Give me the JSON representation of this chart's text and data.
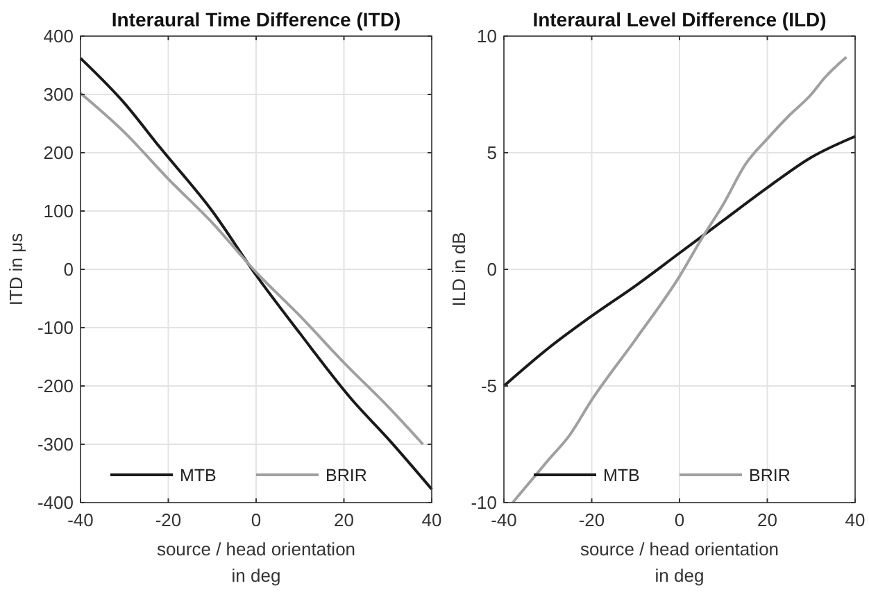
{
  "chart_data": [
    {
      "type": "line",
      "title": "Interaural Time Difference (ITD)",
      "xlabel": "source / head orientation\nin deg",
      "ylabel": "ITD in μs",
      "xlim": [
        -40,
        40
      ],
      "xticks": [
        -40,
        -20,
        0,
        20,
        40
      ],
      "ylim": [
        -400,
        400
      ],
      "yticks": [
        -400,
        -300,
        -200,
        -100,
        0,
        100,
        200,
        300,
        400
      ],
      "grid": true,
      "legend": "bottom",
      "series": [
        {
          "name": "MTB",
          "color": "#1a1a1a",
          "x": [
            -40,
            -30,
            -22,
            -10,
            0,
            10,
            22,
            30,
            40
          ],
          "values": [
            362,
            285,
            210,
            100,
            -10,
            -110,
            -225,
            -290,
            -377
          ]
        },
        {
          "name": "BRIR",
          "color": "#a0a0a0",
          "x": [
            -40,
            -30,
            -20,
            -10,
            0,
            10,
            20,
            30,
            38
          ],
          "values": [
            302,
            235,
            155,
            80,
            -5,
            -80,
            -160,
            -235,
            -300
          ]
        }
      ]
    },
    {
      "type": "line",
      "title": "Interaural Level Difference (ILD)",
      "xlabel": "source / head orientation\nin deg",
      "ylabel": "ILD in dB",
      "xlim": [
        -40,
        40
      ],
      "xticks": [
        -40,
        -20,
        0,
        20,
        40
      ],
      "ylim": [
        -10,
        10
      ],
      "yticks": [
        -10,
        -5,
        0,
        5,
        10
      ],
      "grid": true,
      "legend": "bottom",
      "series": [
        {
          "name": "MTB",
          "color": "#1a1a1a",
          "x": [
            -40,
            -30,
            -20,
            -10,
            0,
            10,
            20,
            30,
            40
          ],
          "values": [
            -5,
            -3.4,
            -2,
            -0.7,
            0.7,
            2.1,
            3.5,
            4.8,
            5.7
          ]
        },
        {
          "name": "BRIR",
          "color": "#a0a0a0",
          "x": [
            -38,
            -30,
            -25,
            -20,
            -10,
            0,
            5,
            10,
            15,
            20,
            25,
            30,
            33,
            38
          ],
          "values": [
            -10,
            -8.2,
            -7.1,
            -5.6,
            -3,
            -0.3,
            1.3,
            2.8,
            4.5,
            5.6,
            6.6,
            7.5,
            8.2,
            9.1
          ]
        }
      ]
    }
  ]
}
